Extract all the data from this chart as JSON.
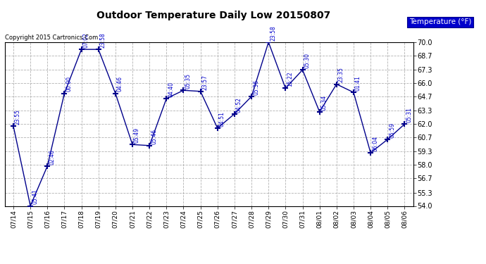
{
  "title": "Outdoor Temperature Daily Low 20150807",
  "copyright": "Copyright 2015 Cartronics.Com",
  "legend_label": "Temperature (°F)",
  "x_labels": [
    "07/14",
    "07/15",
    "07/16",
    "07/17",
    "07/18",
    "07/19",
    "07/20",
    "07/21",
    "07/22",
    "07/23",
    "07/24",
    "07/25",
    "07/26",
    "07/27",
    "07/28",
    "07/29",
    "07/30",
    "07/31",
    "08/01",
    "08/02",
    "08/03",
    "08/04",
    "08/05",
    "08/06"
  ],
  "y_values": [
    61.8,
    54.0,
    57.9,
    65.0,
    69.3,
    69.3,
    65.0,
    60.0,
    59.9,
    64.5,
    65.3,
    65.2,
    61.6,
    63.0,
    64.7,
    70.0,
    65.5,
    67.3,
    63.2,
    65.9,
    65.1,
    59.2,
    60.5,
    62.0
  ],
  "time_labels": [
    "23:55",
    "05:41",
    "02:46",
    "00:00",
    "07:02",
    "23:58",
    "04:46",
    "05:49",
    "05:46",
    "04:40",
    "05:35",
    "23:57",
    "04:51",
    "04:52",
    "05:36",
    "23:58",
    "15:22",
    "05:30",
    "05:34",
    "23:35",
    "01:41",
    "06:04",
    "05:59",
    "05:31"
  ],
  "ylim": [
    54.0,
    70.0
  ],
  "yticks": [
    54.0,
    55.3,
    56.7,
    58.0,
    59.3,
    60.7,
    62.0,
    63.3,
    64.7,
    66.0,
    67.3,
    68.7,
    70.0
  ],
  "line_color": "#00008B",
  "marker_color": "#00008B",
  "grid_color": "#AAAAAA",
  "bg_color": "#FFFFFF",
  "plot_bg_color": "#FFFFFF",
  "title_color": "#000000",
  "label_color": "#0000CC",
  "legend_bg": "#0000CC",
  "legend_text_color": "#FFFFFF"
}
